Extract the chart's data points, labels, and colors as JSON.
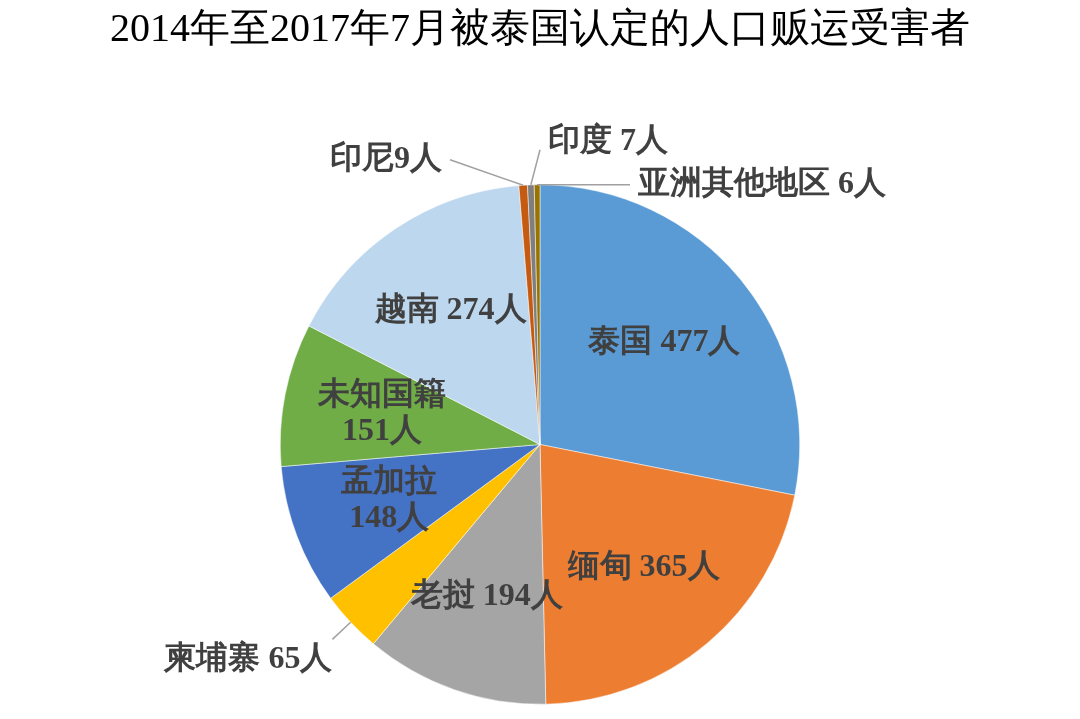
{
  "chart_data": {
    "type": "pie",
    "title": "2014年至2017年7月被泰国认定的人口贩运受害者",
    "categories": [
      "泰国",
      "缅甸",
      "老挝",
      "柬埔寨",
      "孟加拉",
      "未知国籍",
      "越南",
      "印尼",
      "印度",
      "亚洲其他地区"
    ],
    "values": [
      477,
      365,
      194,
      65,
      148,
      151,
      274,
      9,
      7,
      6
    ],
    "colors": [
      "#5b9bd5",
      "#ed7d31",
      "#a5a5a5",
      "#ffc000",
      "#4472c4",
      "#70ad47",
      "#bdd7ee",
      "#c55a11",
      "#7f7f7f",
      "#997300"
    ],
    "value_labels": [
      "477人",
      "365人",
      "194人",
      "65人",
      "148人",
      "151人",
      "274人",
      "9人",
      "7人",
      "6人"
    ],
    "legend": false
  }
}
